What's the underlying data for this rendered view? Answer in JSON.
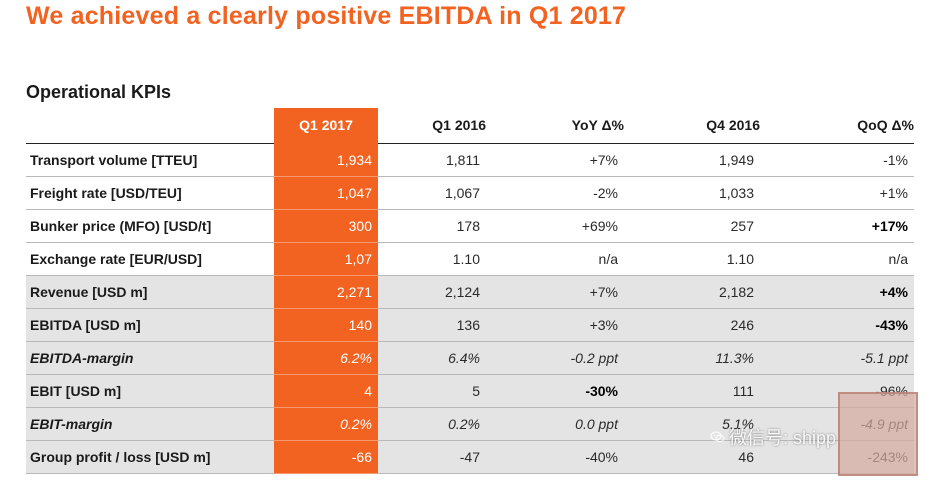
{
  "title": "We achieved a clearly positive EBITDA in Q1 2017",
  "subtitle": "Operational KPIs",
  "columns": [
    "Q1 2017",
    "Q1 2016",
    "YoY Δ%",
    "Q4 2016",
    "QoQ Δ%"
  ],
  "rows": [
    {
      "label": "Transport volume [TTEU]",
      "q1_2017": "1,934",
      "q1_2016": "1,811",
      "yoy": "+7%",
      "q4_2016": "1,949",
      "qoq": "-1%"
    },
    {
      "label": "Freight rate [USD/TEU]",
      "q1_2017": "1,047",
      "q1_2016": "1,067",
      "yoy": "-2%",
      "q4_2016": "1,033",
      "qoq": "+1%"
    },
    {
      "label": "Bunker price (MFO) [USD/t]",
      "q1_2017": "300",
      "q1_2016": "178",
      "yoy": "+69%",
      "q4_2016": "257",
      "qoq": "+17%"
    },
    {
      "label": "Exchange rate [EUR/USD]",
      "q1_2017": "1,07",
      "q1_2016": "1.10",
      "yoy": "n/a",
      "q4_2016": "1.10",
      "qoq": "n/a"
    },
    {
      "label": "Revenue [USD m]",
      "q1_2017": "2,271",
      "q1_2016": "2,124",
      "yoy": "+7%",
      "q4_2016": "2,182",
      "qoq": "+4%"
    },
    {
      "label": "EBITDA [USD m]",
      "q1_2017": "140",
      "q1_2016": "136",
      "yoy": "+3%",
      "q4_2016": "246",
      "qoq": "-43%"
    },
    {
      "label": "EBITDA-margin",
      "q1_2017": "6.2%",
      "q1_2016": "6.4%",
      "yoy": "-0.2 ppt",
      "q4_2016": "11.3%",
      "qoq": "-5.1 ppt"
    },
    {
      "label": "EBIT [USD m]",
      "q1_2017": "4",
      "q1_2016": "5",
      "yoy": "-30%",
      "q4_2016": "111",
      "qoq": "-96%"
    },
    {
      "label": "EBIT-margin",
      "q1_2017": "0.2%",
      "q1_2016": "0.2%",
      "yoy": "0.0 ppt",
      "q4_2016": "5.1%",
      "qoq": "-4.9 ppt"
    },
    {
      "label": "Group profit / loss [USD m]",
      "q1_2017": "-66",
      "q1_2016": "-47",
      "yoy": "-40%",
      "q4_2016": "46",
      "qoq": "-243%"
    }
  ],
  "watermark": {
    "text": "微信号: shipp",
    "icon": "wechat-icon",
    "seal": "seal-stamp"
  },
  "colors": {
    "accent": "#f26322",
    "shaded_row": "#e4e4e4"
  }
}
